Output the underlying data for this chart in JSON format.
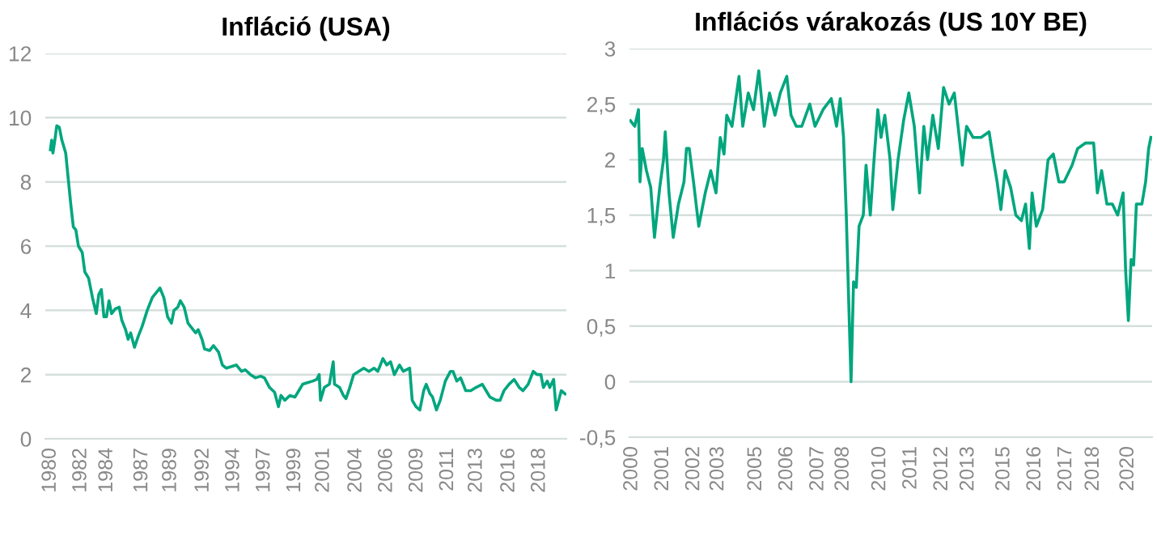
{
  "chart_data": [
    {
      "type": "line",
      "title": "Infláció (USA)",
      "color": "#00a67e",
      "grid": "y",
      "legend": false,
      "marker": "none",
      "line_style": "solid",
      "xlim": [
        1979.6,
        2020.5
      ],
      "ylim": [
        0,
        12
      ],
      "yticks": [
        0,
        2,
        4,
        6,
        8,
        10,
        12
      ],
      "xticks": [
        {
          "value": 1980.0,
          "label": "1980"
        },
        {
          "value": 1982.4,
          "label": "1982"
        },
        {
          "value": 1984.45,
          "label": "1984"
        },
        {
          "value": 1987.2,
          "label": "1987"
        },
        {
          "value": 1989.45,
          "label": "1989"
        },
        {
          "value": 1992.0,
          "label": "1992"
        },
        {
          "value": 1994.4,
          "label": "1994"
        },
        {
          "value": 1996.8,
          "label": "1997"
        },
        {
          "value": 1999.2,
          "label": "1999"
        },
        {
          "value": 2001.45,
          "label": "2001"
        },
        {
          "value": 2004.0,
          "label": "2004"
        },
        {
          "value": 2006.4,
          "label": "2006"
        },
        {
          "value": 2008.8,
          "label": "2009"
        },
        {
          "value": 2011.2,
          "label": "2011"
        },
        {
          "value": 2013.45,
          "label": "2013"
        },
        {
          "value": 2016.0,
          "label": "2016"
        },
        {
          "value": 2018.4,
          "label": "2018"
        }
      ],
      "x": [
        1980.0,
        1980.1,
        1980.2,
        1980.35,
        1980.5,
        1980.7,
        1980.9,
        1981.2,
        1981.4,
        1981.6,
        1981.8,
        1982.0,
        1982.2,
        1982.5,
        1982.7,
        1983.0,
        1983.3,
        1983.6,
        1983.8,
        1984.0,
        1984.2,
        1984.4,
        1984.6,
        1984.8,
        1985.1,
        1985.4,
        1985.6,
        1985.9,
        1986.1,
        1986.3,
        1986.6,
        1986.9,
        1987.2,
        1987.6,
        1988.0,
        1988.3,
        1988.6,
        1988.9,
        1989.2,
        1989.5,
        1989.7,
        1990.0,
        1990.2,
        1990.5,
        1990.8,
        1991.1,
        1991.4,
        1991.6,
        1991.9,
        1992.1,
        1992.5,
        1992.8,
        1993.2,
        1993.5,
        1993.8,
        1994.2,
        1994.6,
        1995.0,
        1995.3,
        1995.7,
        1996.1,
        1996.5,
        1996.8,
        1997.2,
        1997.6,
        1997.9,
        1998.1,
        1998.4,
        1998.8,
        1999.2,
        1999.5,
        1999.8,
        2000.2,
        2000.6,
        2000.9,
        2001.1,
        2001.2,
        2001.5,
        2001.9,
        2002.2,
        2002.3,
        2002.7,
        2003.0,
        2003.2,
        2003.5,
        2003.8,
        2004.2,
        2004.6,
        2005.0,
        2005.4,
        2005.7,
        2006.1,
        2006.4,
        2006.7,
        2007.0,
        2007.4,
        2007.7,
        2008.2,
        2008.4,
        2008.7,
        2009.0,
        2009.3,
        2009.5,
        2009.8,
        2010.0,
        2010.3,
        2010.6,
        2011.0,
        2011.4,
        2011.6,
        2011.9,
        2012.2,
        2012.6,
        2013.0,
        2013.4,
        2013.9,
        2014.2,
        2014.5,
        2015.0,
        2015.3,
        2015.6,
        2016.0,
        2016.4,
        2016.8,
        2017.1,
        2017.5,
        2017.9,
        2018.2,
        2018.5,
        2018.7,
        2019.0,
        2019.2,
        2019.5,
        2019.7,
        2019.9,
        2020.1,
        2020.4
      ],
      "values": [
        9.0,
        9.3,
        8.9,
        9.3,
        9.75,
        9.7,
        9.3,
        8.9,
        8.1,
        7.3,
        6.6,
        6.5,
        6.0,
        5.8,
        5.2,
        5.0,
        4.4,
        3.9,
        4.5,
        4.65,
        3.8,
        3.8,
        4.3,
        3.9,
        4.05,
        4.1,
        3.7,
        3.4,
        3.1,
        3.3,
        2.85,
        3.2,
        3.5,
        4.0,
        4.4,
        4.55,
        4.7,
        4.4,
        3.8,
        3.6,
        4.0,
        4.1,
        4.3,
        4.1,
        3.6,
        3.45,
        3.3,
        3.4,
        3.1,
        2.8,
        2.75,
        2.9,
        2.7,
        2.3,
        2.2,
        2.25,
        2.3,
        2.1,
        2.15,
        2.0,
        1.9,
        1.95,
        1.9,
        1.6,
        1.45,
        1.0,
        1.35,
        1.2,
        1.35,
        1.3,
        1.5,
        1.7,
        1.75,
        1.8,
        1.85,
        2.0,
        1.2,
        1.6,
        1.7,
        2.4,
        1.7,
        1.6,
        1.35,
        1.25,
        1.6,
        2.0,
        2.1,
        2.2,
        2.1,
        2.2,
        2.1,
        2.5,
        2.3,
        2.4,
        2.0,
        2.3,
        2.1,
        2.2,
        1.2,
        1.0,
        0.9,
        1.5,
        1.7,
        1.4,
        1.3,
        0.9,
        1.2,
        1.8,
        2.1,
        2.1,
        1.8,
        1.9,
        1.5,
        1.5,
        1.6,
        1.7,
        1.5,
        1.3,
        1.2,
        1.2,
        1.5,
        1.7,
        1.85,
        1.6,
        1.5,
        1.7,
        2.1,
        2.0,
        2.0,
        1.6,
        1.8,
        1.6,
        1.85,
        0.9,
        1.2,
        1.5,
        1.4
      ]
    },
    {
      "type": "line",
      "title": "Inflációs várakozás (US 10Y BE)",
      "color": "#00a67e",
      "grid": "y",
      "legend": false,
      "marker": "none",
      "line_style": "solid",
      "xlim": [
        1999.9,
        2020.8
      ],
      "ylim": [
        -0.5,
        3
      ],
      "yticks": [
        {
          "value": -0.5,
          "label": "-0,5"
        },
        0,
        {
          "value": 0.5,
          "label": "0,5"
        },
        1,
        {
          "value": 1.5,
          "label": "1,5"
        },
        2,
        {
          "value": 2.5,
          "label": "2,5"
        },
        3
      ],
      "xticks": [
        {
          "value": 2000.0,
          "label": "2000"
        },
        {
          "value": 2001.24,
          "label": "2001"
        },
        {
          "value": 2002.48,
          "label": "2002"
        },
        {
          "value": 2003.45,
          "label": "2003"
        },
        {
          "value": 2004.96,
          "label": "2005"
        },
        {
          "value": 2006.2,
          "label": "2006"
        },
        {
          "value": 2007.44,
          "label": "2007"
        },
        {
          "value": 2008.45,
          "label": "2008"
        },
        {
          "value": 2009.92,
          "label": "2010"
        },
        {
          "value": 2011.16,
          "label": "2011"
        },
        {
          "value": 2012.4,
          "label": "2012"
        },
        {
          "value": 2013.45,
          "label": "2013"
        },
        {
          "value": 2014.88,
          "label": "2015"
        },
        {
          "value": 2016.12,
          "label": "2016"
        },
        {
          "value": 2017.36,
          "label": "2017"
        },
        {
          "value": 2018.45,
          "label": "2018"
        },
        {
          "value": 2019.84,
          "label": "2020"
        }
      ],
      "x": [
        1999.94,
        2000.11,
        2000.26,
        2000.32,
        2000.41,
        2000.58,
        2000.75,
        2000.9,
        2001.11,
        2001.26,
        2001.33,
        2001.48,
        2001.65,
        2001.86,
        2002.08,
        2002.18,
        2002.29,
        2002.46,
        2002.67,
        2002.93,
        2003.15,
        2003.36,
        2003.53,
        2003.68,
        2003.79,
        2004.0,
        2004.28,
        2004.43,
        2004.65,
        2004.86,
        2005.07,
        2005.29,
        2005.5,
        2005.72,
        2005.93,
        2006.19,
        2006.36,
        2006.57,
        2006.79,
        2007.11,
        2007.32,
        2007.64,
        2007.97,
        2008.18,
        2008.33,
        2008.46,
        2008.57,
        2008.67,
        2008.76,
        2008.86,
        2008.97,
        2009.08,
        2009.25,
        2009.36,
        2009.53,
        2009.68,
        2009.83,
        2009.96,
        2010.11,
        2010.32,
        2010.43,
        2010.64,
        2010.86,
        2011.07,
        2011.29,
        2011.5,
        2011.67,
        2011.82,
        2012.03,
        2012.25,
        2012.46,
        2012.68,
        2012.89,
        2013.04,
        2013.21,
        2013.38,
        2013.64,
        2013.96,
        2014.28,
        2014.45,
        2014.6,
        2014.75,
        2014.92,
        2015.14,
        2015.35,
        2015.57,
        2015.74,
        2015.89,
        2016.0,
        2016.17,
        2016.42,
        2016.64,
        2016.85,
        2017.07,
        2017.28,
        2017.6,
        2017.82,
        2018.14,
        2018.46,
        2018.61,
        2018.78,
        2018.99,
        2019.21,
        2019.42,
        2019.64,
        2019.74,
        2019.85,
        2019.96,
        2020.06,
        2020.17,
        2020.39,
        2020.54,
        2020.66,
        2020.75
      ],
      "values": [
        2.35,
        2.3,
        2.45,
        1.8,
        2.1,
        1.9,
        1.75,
        1.3,
        1.75,
        2.0,
        2.25,
        1.7,
        1.3,
        1.6,
        1.8,
        2.1,
        2.1,
        1.8,
        1.4,
        1.7,
        1.9,
        1.7,
        2.2,
        2.05,
        2.4,
        2.3,
        2.75,
        2.3,
        2.6,
        2.45,
        2.8,
        2.3,
        2.6,
        2.4,
        2.6,
        2.75,
        2.4,
        2.3,
        2.3,
        2.5,
        2.3,
        2.45,
        2.55,
        2.3,
        2.55,
        2.2,
        1.5,
        0.7,
        0.0,
        0.9,
        0.85,
        1.4,
        1.5,
        1.95,
        1.5,
        2.0,
        2.45,
        2.2,
        2.4,
        2.0,
        1.55,
        2.0,
        2.35,
        2.6,
        2.3,
        1.7,
        2.3,
        2.0,
        2.4,
        2.1,
        2.65,
        2.5,
        2.6,
        2.3,
        1.95,
        2.3,
        2.2,
        2.2,
        2.25,
        2.0,
        1.8,
        1.55,
        1.9,
        1.75,
        1.5,
        1.45,
        1.6,
        1.2,
        1.7,
        1.4,
        1.55,
        2.0,
        2.05,
        1.8,
        1.8,
        1.95,
        2.1,
        2.15,
        2.15,
        1.7,
        1.9,
        1.6,
        1.6,
        1.5,
        1.7,
        1.0,
        0.55,
        1.1,
        1.05,
        1.6,
        1.6,
        1.8,
        2.1,
        2.2
      ]
    }
  ]
}
